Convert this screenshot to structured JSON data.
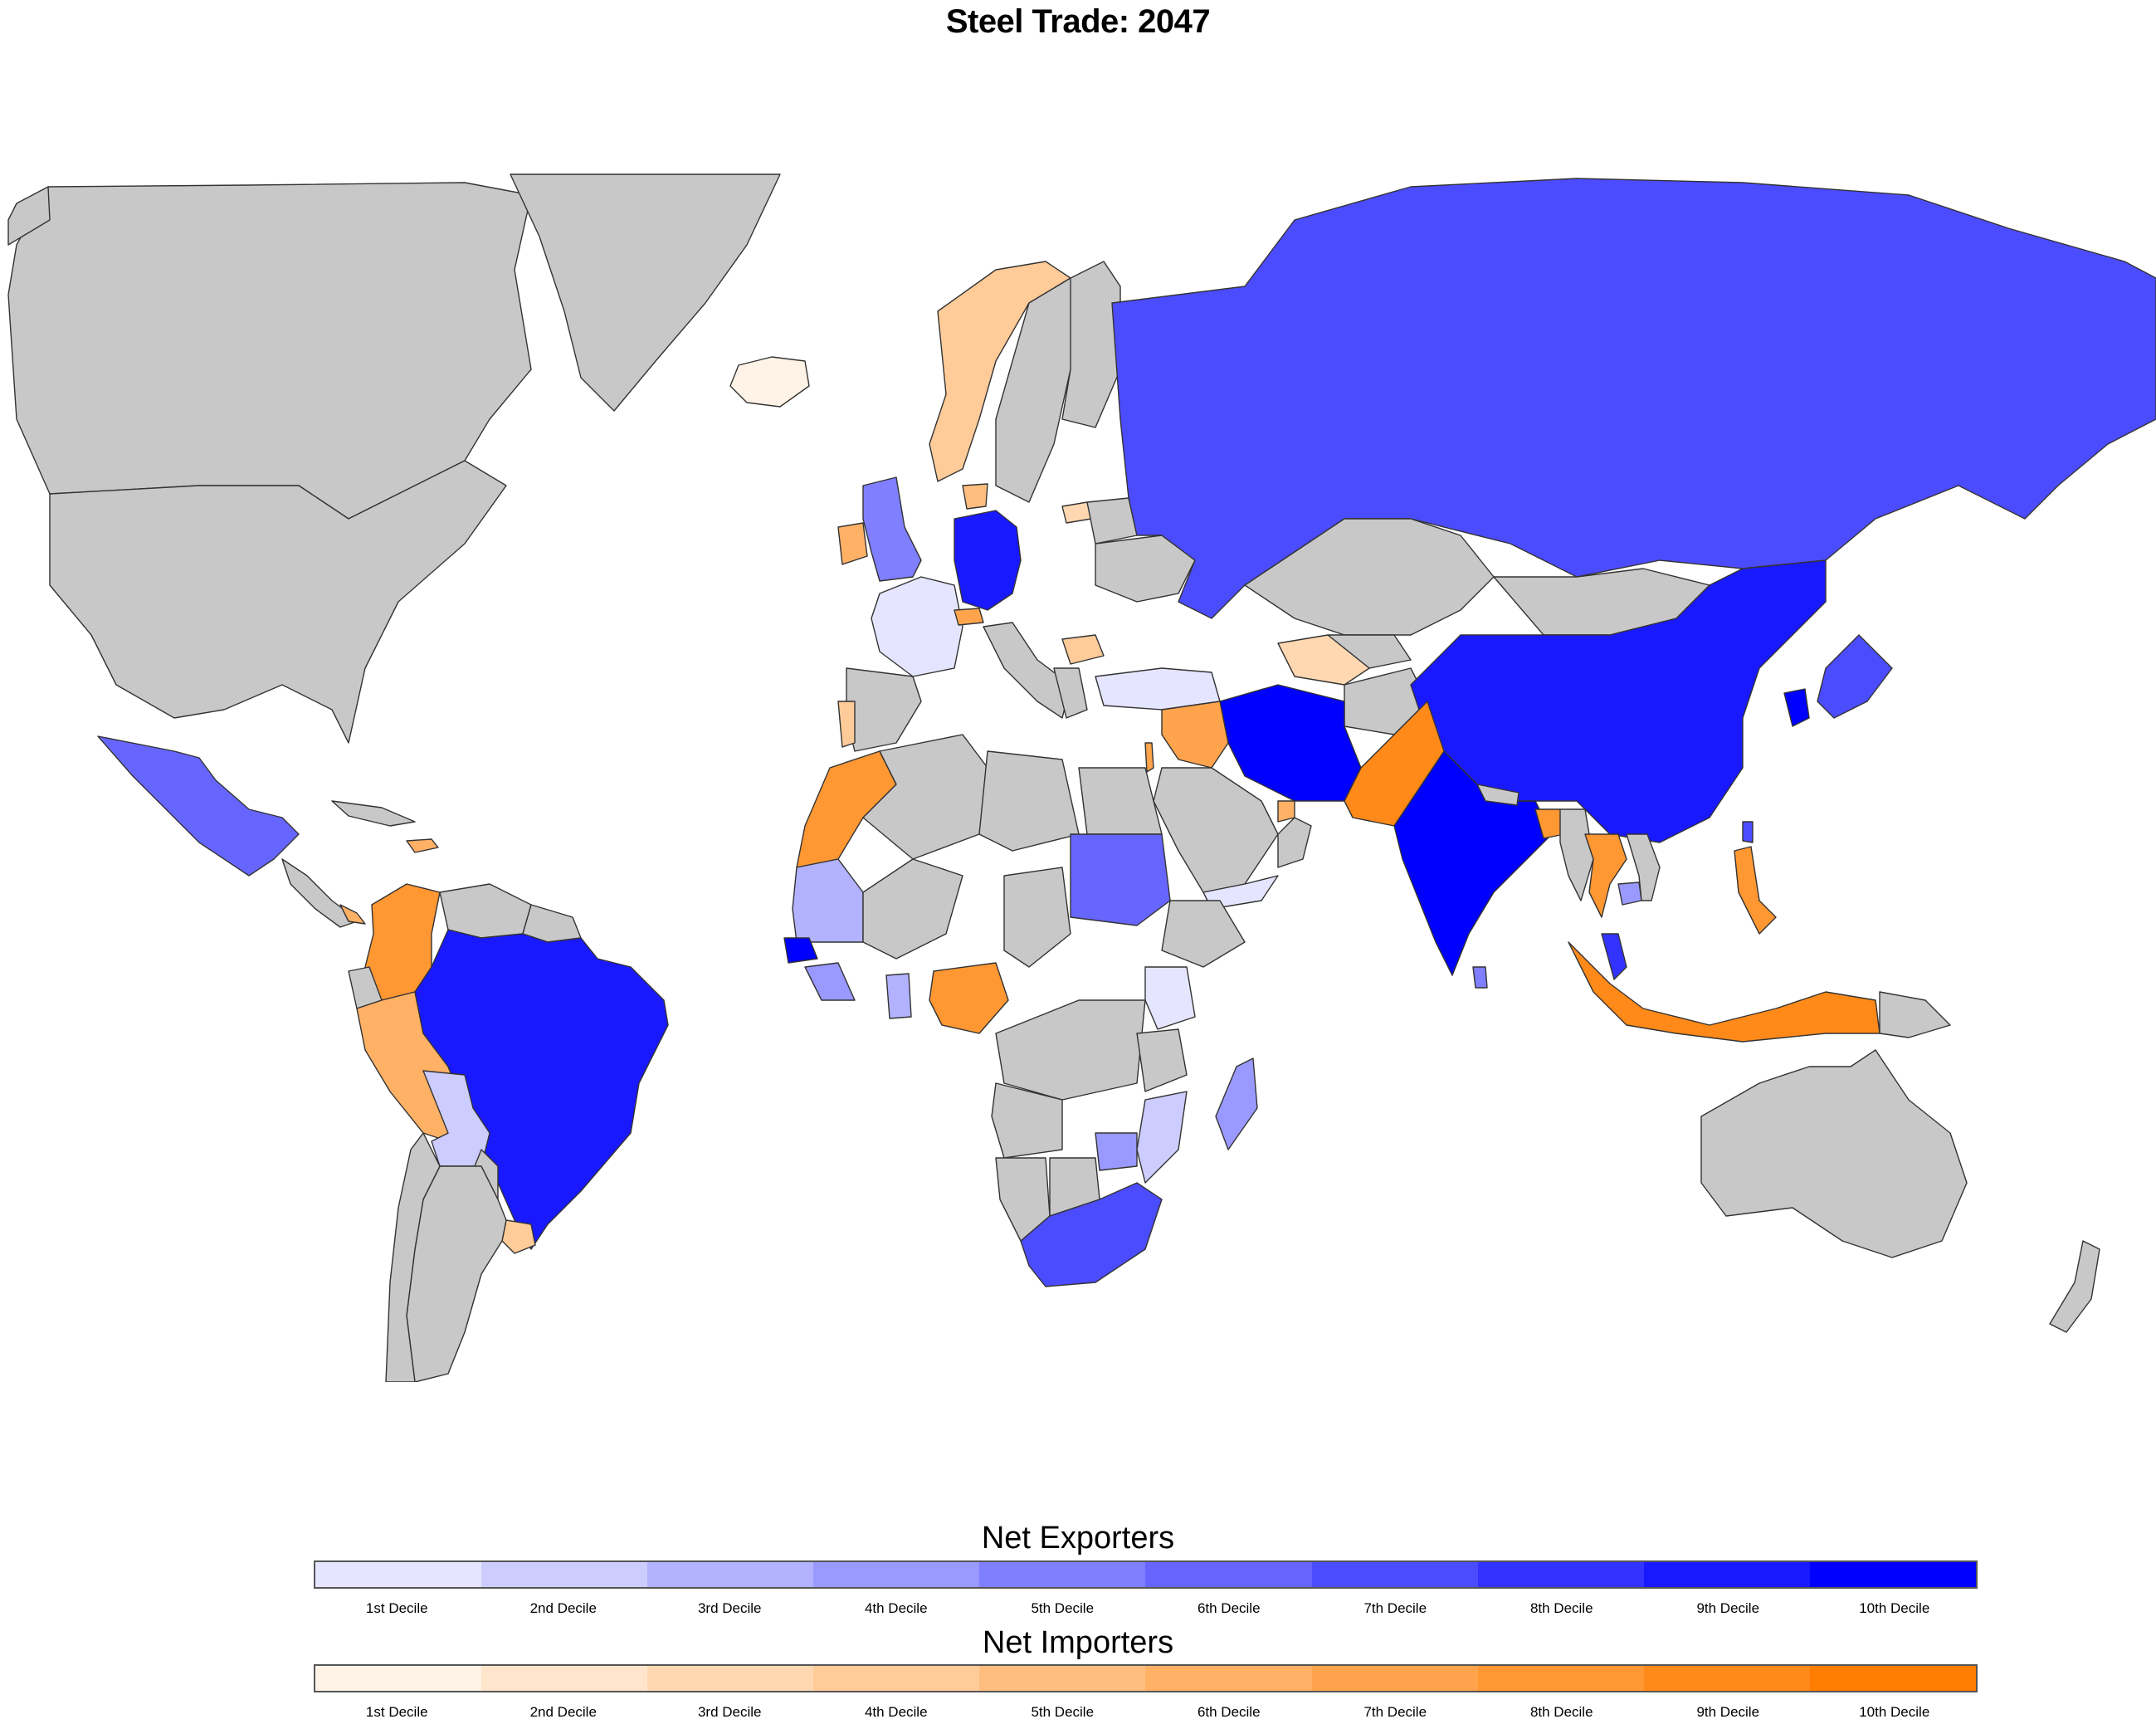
{
  "title": "Steel Trade: 2047",
  "colors": {
    "ocean": "#ffffff",
    "no_data": "#c8c8c8",
    "border": "#333333",
    "exporters": [
      "#e5e5ff",
      "#ccccff",
      "#b2b2ff",
      "#9999ff",
      "#7f7fff",
      "#6666ff",
      "#4c4cff",
      "#3333ff",
      "#1919ff",
      "#0000ff"
    ],
    "importers": [
      "#fff2e6",
      "#ffe5cc",
      "#ffd8b2",
      "#ffcb99",
      "#ffbe7f",
      "#ffb166",
      "#ffa44c",
      "#ff9733",
      "#ff8a19",
      "#ff7d00"
    ]
  },
  "legend": {
    "exporters": {
      "title": "Net Exporters",
      "labels": [
        "1st Decile",
        "2nd Decile",
        "3rd Decile",
        "4th Decile",
        "5th Decile",
        "6th Decile",
        "7th Decile",
        "8th Decile",
        "9th Decile",
        "10th Decile"
      ]
    },
    "importers": {
      "title": "Net Importers",
      "labels": [
        "1st Decile",
        "2nd Decile",
        "3rd Decile",
        "4th Decile",
        "5th Decile",
        "6th Decile",
        "7th Decile",
        "8th Decile",
        "9th Decile",
        "10th Decile"
      ]
    }
  },
  "map": {
    "projection": "mercator",
    "regions": [
      {
        "id": "canada",
        "category": "none"
      },
      {
        "id": "greenland",
        "category": "none"
      },
      {
        "id": "usa",
        "category": "none"
      },
      {
        "id": "alaska",
        "category": "none"
      },
      {
        "id": "mexico",
        "category": "exp",
        "decile": 6
      },
      {
        "id": "central-america",
        "category": "none"
      },
      {
        "id": "cuba",
        "category": "none"
      },
      {
        "id": "dominican-republic",
        "category": "imp",
        "decile": 6
      },
      {
        "id": "costa-rica",
        "category": "imp",
        "decile": 6
      },
      {
        "id": "colombia",
        "category": "imp",
        "decile": 8
      },
      {
        "id": "venezuela",
        "category": "none"
      },
      {
        "id": "guyana",
        "category": "none"
      },
      {
        "id": "ecuador",
        "category": "none"
      },
      {
        "id": "peru",
        "category": "imp",
        "decile": 6
      },
      {
        "id": "brazil",
        "category": "exp",
        "decile": 9
      },
      {
        "id": "bolivia",
        "category": "exp",
        "decile": 2
      },
      {
        "id": "paraguay",
        "category": "none"
      },
      {
        "id": "uruguay",
        "category": "imp",
        "decile": 4
      },
      {
        "id": "chile",
        "category": "none"
      },
      {
        "id": "argentina",
        "category": "none"
      },
      {
        "id": "iceland",
        "category": "imp",
        "decile": 1
      },
      {
        "id": "norway",
        "category": "imp",
        "decile": 4
      },
      {
        "id": "sweden",
        "category": "none"
      },
      {
        "id": "finland",
        "category": "none"
      },
      {
        "id": "united-kingdom",
        "category": "exp",
        "decile": 5
      },
      {
        "id": "ireland",
        "category": "imp",
        "decile": 6
      },
      {
        "id": "france",
        "category": "exp",
        "decile": 1
      },
      {
        "id": "spain",
        "category": "none"
      },
      {
        "id": "portugal",
        "category": "imp",
        "decile": 4
      },
      {
        "id": "germany",
        "category": "exp",
        "decile": 9
      },
      {
        "id": "denmark",
        "category": "imp",
        "decile": 5
      },
      {
        "id": "lithuania",
        "category": "imp",
        "decile": 3
      },
      {
        "id": "belarus",
        "category": "none"
      },
      {
        "id": "switzerland",
        "category": "imp",
        "decile": 7
      },
      {
        "id": "italy",
        "category": "none"
      },
      {
        "id": "bulgaria",
        "category": "imp",
        "decile": 4
      },
      {
        "id": "greece",
        "category": "none"
      },
      {
        "id": "turkey",
        "category": "exp",
        "decile": 1
      },
      {
        "id": "ukraine",
        "category": "none"
      },
      {
        "id": "russia",
        "category": "exp",
        "decile": 7
      },
      {
        "id": "kazakhstan",
        "category": "none"
      },
      {
        "id": "mongolia",
        "category": "none"
      },
      {
        "id": "china",
        "category": "exp",
        "decile": 9
      },
      {
        "id": "korea",
        "category": "exp",
        "decile": 10
      },
      {
        "id": "japan",
        "category": "exp",
        "decile": 7
      },
      {
        "id": "taiwan",
        "category": "exp",
        "decile": 7
      },
      {
        "id": "turkmenistan",
        "category": "imp",
        "decile": 3
      },
      {
        "id": "uzbekistan",
        "category": "none"
      },
      {
        "id": "afghanistan",
        "category": "none"
      },
      {
        "id": "iran",
        "category": "exp",
        "decile": 10
      },
      {
        "id": "iraq",
        "category": "imp",
        "decile": 7
      },
      {
        "id": "israel",
        "category": "imp",
        "decile": 7
      },
      {
        "id": "saudi-arabia",
        "category": "none"
      },
      {
        "id": "uae",
        "category": "imp",
        "decile": 6
      },
      {
        "id": "yemen",
        "category": "exp",
        "decile": 1
      },
      {
        "id": "oman",
        "category": "none"
      },
      {
        "id": "pakistan",
        "category": "imp",
        "decile": 9
      },
      {
        "id": "india",
        "category": "exp",
        "decile": 10
      },
      {
        "id": "sri-lanka",
        "category": "exp",
        "decile": 5
      },
      {
        "id": "nepal",
        "category": "none"
      },
      {
        "id": "bangladesh",
        "category": "imp",
        "decile": 8
      },
      {
        "id": "myanmar",
        "category": "none"
      },
      {
        "id": "thailand",
        "category": "imp",
        "decile": 8
      },
      {
        "id": "vietnam",
        "category": "none"
      },
      {
        "id": "cambodia",
        "category": "exp",
        "decile": 4
      },
      {
        "id": "malaysia",
        "category": "exp",
        "decile": 8
      },
      {
        "id": "philippines",
        "category": "imp",
        "decile": 8
      },
      {
        "id": "indonesia",
        "category": "imp",
        "decile": 9
      },
      {
        "id": "papua-new-guinea",
        "category": "none"
      },
      {
        "id": "australia",
        "category": "none"
      },
      {
        "id": "new-zealand",
        "category": "none"
      },
      {
        "id": "morocco",
        "category": "imp",
        "decile": 8
      },
      {
        "id": "algeria",
        "category": "none"
      },
      {
        "id": "libya",
        "category": "none"
      },
      {
        "id": "egypt",
        "category": "none"
      },
      {
        "id": "mauritania",
        "category": "exp",
        "decile": 3
      },
      {
        "id": "mali",
        "category": "none"
      },
      {
        "id": "senegal",
        "category": "exp",
        "decile": 10
      },
      {
        "id": "guinea",
        "category": "exp",
        "decile": 4
      },
      {
        "id": "ghana",
        "category": "exp",
        "decile": 3
      },
      {
        "id": "nigeria",
        "category": "imp",
        "decile": 8
      },
      {
        "id": "chad",
        "category": "none"
      },
      {
        "id": "sudan",
        "category": "exp",
        "decile": 6
      },
      {
        "id": "ethiopia",
        "category": "none"
      },
      {
        "id": "kenya",
        "category": "exp",
        "decile": 1
      },
      {
        "id": "congo",
        "category": "none"
      },
      {
        "id": "angola",
        "category": "none"
      },
      {
        "id": "tanzania",
        "category": "none"
      },
      {
        "id": "mozambique",
        "category": "exp",
        "decile": 2
      },
      {
        "id": "zimbabwe",
        "category": "exp",
        "decile": 4
      },
      {
        "id": "namibia",
        "category": "none"
      },
      {
        "id": "botswana",
        "category": "none"
      },
      {
        "id": "south-africa",
        "category": "exp",
        "decile": 7
      },
      {
        "id": "madagascar",
        "category": "exp",
        "decile": 4
      }
    ]
  }
}
